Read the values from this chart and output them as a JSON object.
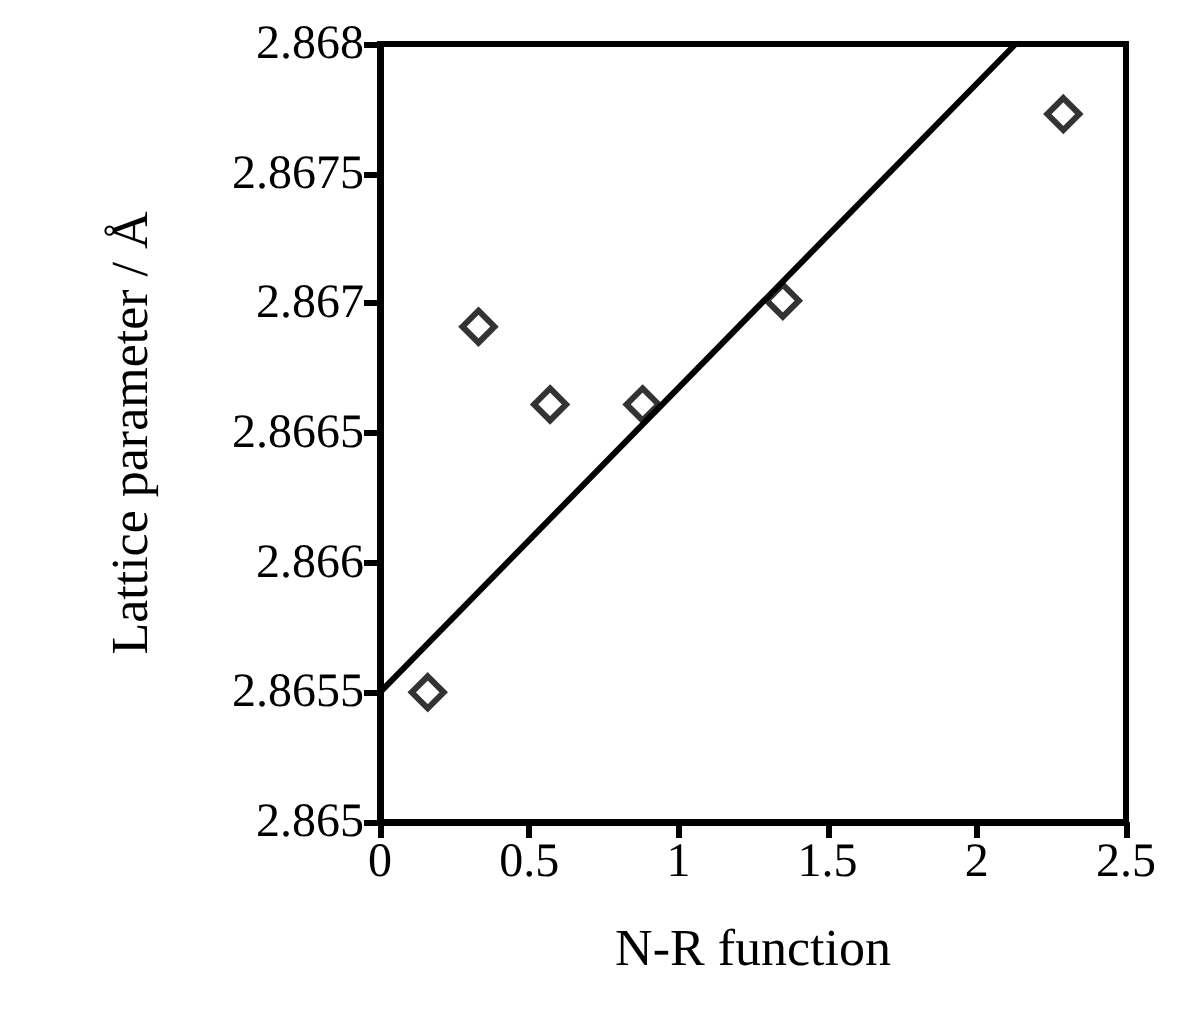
{
  "chart_data": {
    "type": "scatter",
    "xlabel": "N-R function",
    "ylabel": "Lattice parameter / Å",
    "xlim": [
      0,
      2.5
    ],
    "xticks": [
      0,
      0.5,
      1,
      1.5,
      2,
      2.5
    ],
    "ylim": [
      2.865,
      2.868
    ],
    "yticks": [
      2.865,
      2.8655,
      2.866,
      2.8665,
      2.867,
      2.8675,
      2.868
    ],
    "grid": false,
    "series": [
      {
        "marker": "diamond",
        "color": "#000000",
        "x": [
          0.16,
          0.33,
          0.57,
          0.88,
          1.35,
          2.29
        ],
        "values": [
          2.8655,
          2.86691,
          2.86661,
          2.86661,
          2.86701,
          2.86773
        ]
      },
      {
        "type": "line",
        "marker": "none",
        "color": "#000000",
        "x": [
          0,
          2.13
        ],
        "values": [
          2.8655,
          2.868
        ]
      }
    ]
  }
}
